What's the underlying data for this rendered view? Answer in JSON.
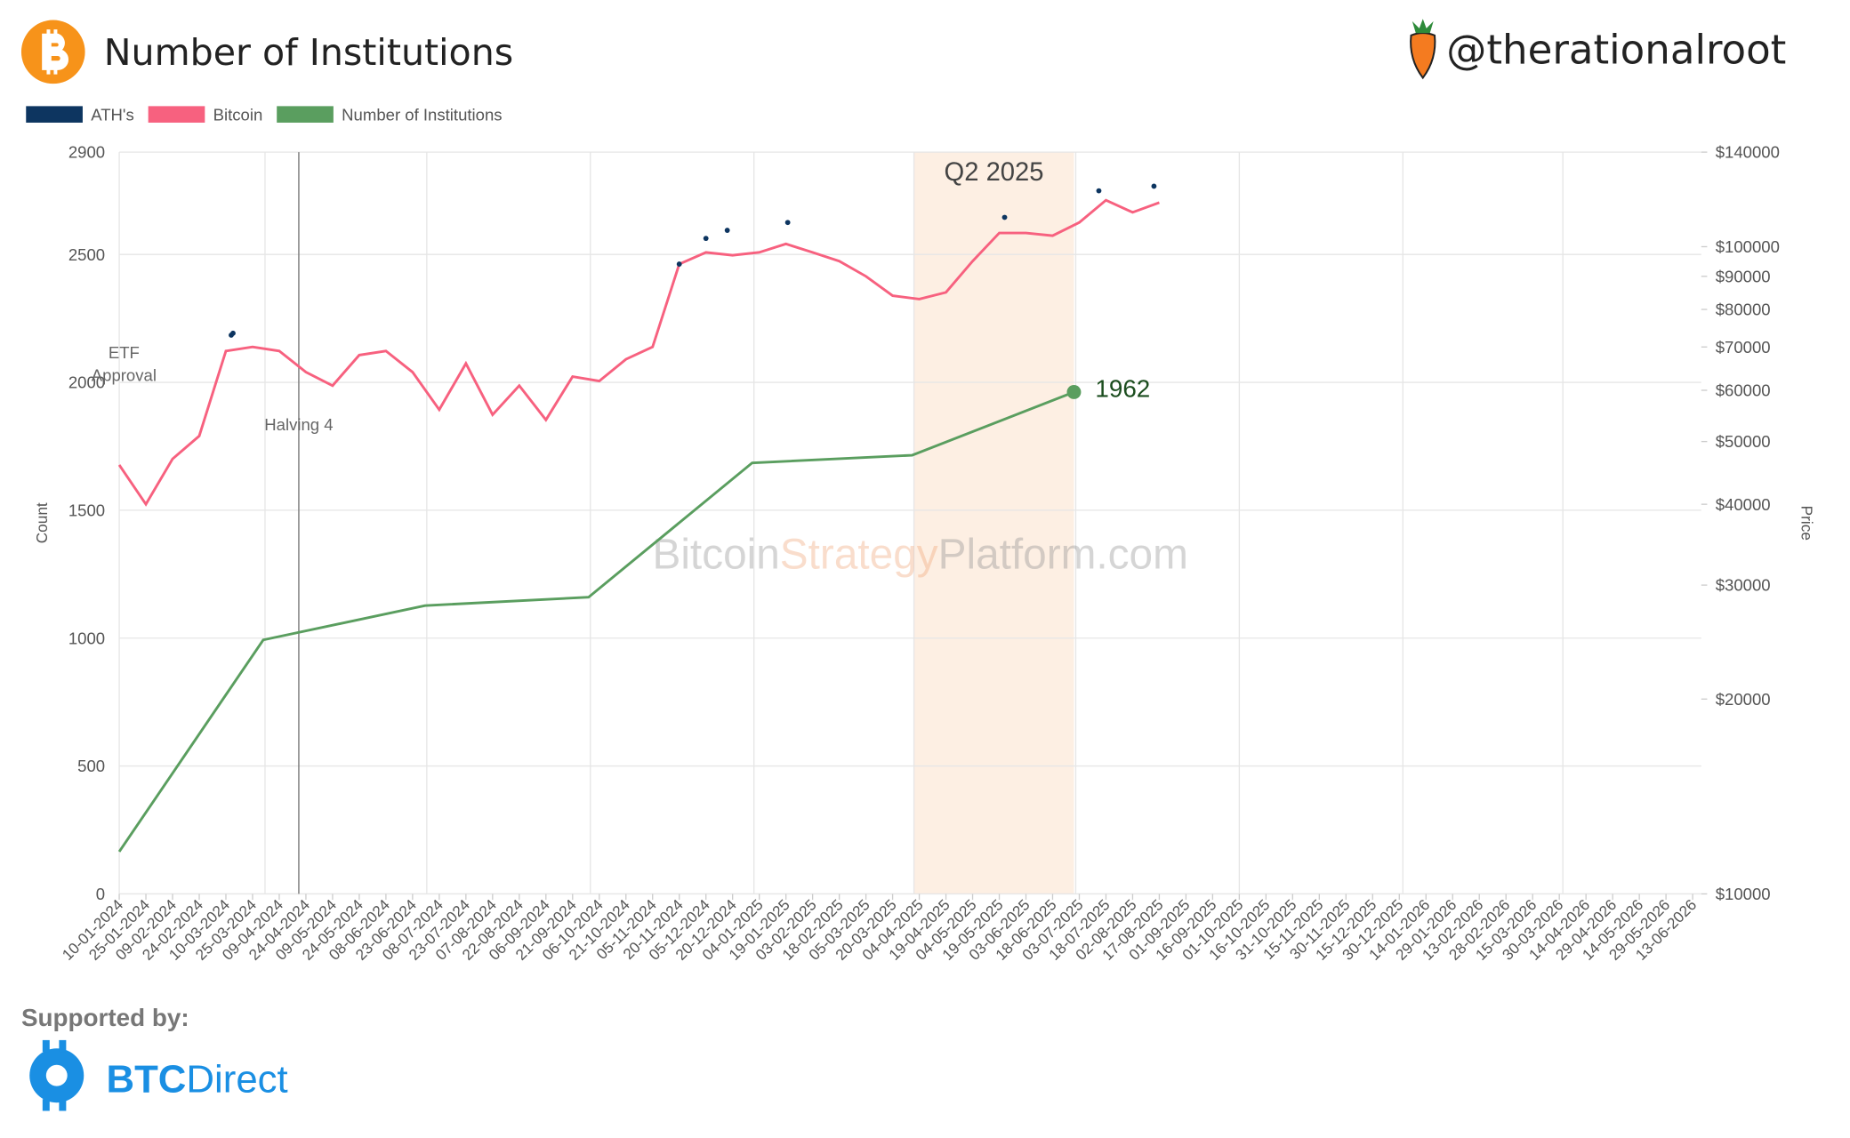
{
  "header": {
    "handle": "@therationalroot"
  },
  "footer": {
    "supported_by": "Supported by:",
    "brand_bold": "BTC",
    "brand": "Direct"
  },
  "chart_data": {
    "type": "line",
    "title": "Number of Institutions",
    "legend": "top-left",
    "grid": true,
    "y_label": "Count",
    "y2_label": "Price",
    "y2log": true,
    "categories": [
      "10-01-2024",
      "25-01-2024",
      "09-02-2024",
      "24-02-2024",
      "10-03-2024",
      "25-03-2024",
      "09-04-2024",
      "24-04-2024",
      "09-05-2024",
      "24-05-2024",
      "08-06-2024",
      "23-06-2024",
      "08-07-2024",
      "23-07-2024",
      "07-08-2024",
      "22-08-2024",
      "06-09-2024",
      "21-09-2024",
      "06-10-2024",
      "21-10-2024",
      "05-11-2024",
      "20-11-2024",
      "05-12-2024",
      "20-12-2024",
      "04-01-2025",
      "19-01-2025",
      "03-02-2025",
      "18-02-2025",
      "05-03-2025",
      "20-03-2025",
      "04-04-2025",
      "19-04-2025",
      "04-05-2025",
      "19-05-2025",
      "03-06-2025",
      "18-06-2025",
      "03-07-2025",
      "18-07-2025",
      "02-08-2025",
      "17-08-2025",
      "01-09-2025",
      "16-09-2025",
      "01-10-2025",
      "16-10-2025",
      "31-10-2025",
      "15-11-2025",
      "30-11-2025",
      "15-12-2025",
      "30-12-2025",
      "14-01-2026",
      "29-01-2026",
      "13-02-2026",
      "28-02-2026",
      "15-03-2026",
      "30-03-2026",
      "14-04-2026",
      "29-04-2026",
      "14-05-2026",
      "29-05-2026",
      "13-06-2026"
    ],
    "ylim": [
      0,
      2900
    ],
    "yticks": [
      0,
      500,
      1000,
      1500,
      2000,
      2500,
      2900
    ],
    "y2lim": [
      10000,
      140000
    ],
    "y2ticks": [
      {
        "value": 10000,
        "label": "$10000"
      },
      {
        "value": 20000,
        "label": "$20000"
      },
      {
        "value": 30000,
        "label": "$30000"
      },
      {
        "value": 40000,
        "label": "$40000"
      },
      {
        "value": 50000,
        "label": "$50000"
      },
      {
        "value": 60000,
        "label": "$60000"
      },
      {
        "value": 70000,
        "label": "$70000"
      },
      {
        "value": 80000,
        "label": "$80000"
      },
      {
        "value": 90000,
        "label": "$90000"
      },
      {
        "value": 100000,
        "label": "$100000"
      },
      {
        "value": 140000,
        "label": "$140000"
      }
    ],
    "series": [
      {
        "name": "ATH's",
        "color": "#0d3560",
        "axis": "y2",
        "x": [
          "13-03-2024",
          "14-03-2024",
          "20-11-2024",
          "05-12-2024",
          "17-12-2024",
          "20-01-2025",
          "22-05-2025",
          "14-07-2025",
          "14-08-2025"
        ],
        "values": [
          73000,
          73500,
          94000,
          103000,
          106000,
          109000,
          111000,
          122000,
          124000
        ]
      },
      {
        "name": "Bitcoin",
        "color": "#f7617f",
        "axis": "y2",
        "values": [
          46000,
          40000,
          47000,
          51000,
          69000,
          70000,
          69000,
          64000,
          61000,
          68000,
          69000,
          64000,
          56000,
          66000,
          55000,
          61000,
          54000,
          63000,
          62000,
          67000,
          70000,
          94000,
          98000,
          97000,
          98000,
          101000,
          98000,
          95000,
          90000,
          84000,
          83000,
          85000,
          95000,
          105000,
          105000,
          104000,
          109000,
          118000,
          113000,
          117000,
          null,
          null,
          null,
          null,
          null,
          null,
          null,
          null,
          null,
          null,
          null,
          null,
          null,
          null,
          null,
          null,
          null,
          null,
          null,
          null
        ]
      },
      {
        "name": "Number of Institutions",
        "color": "#5a9e5f",
        "x": [
          "10-01-2024",
          "31-03-2024",
          "30-06-2024",
          "30-09-2024",
          "31-12-2024",
          "31-03-2025",
          "30-06-2025"
        ],
        "values": [
          165,
          993,
          1127,
          1160,
          1685,
          1715,
          1962
        ]
      }
    ],
    "annotations": [
      {
        "text": [
          "ETF",
          "Approval"
        ],
        "x": "10-01-2024"
      },
      {
        "text": [
          "Halving 4"
        ],
        "x": "20-04-2024"
      }
    ],
    "highlight": {
      "label": "Q2 2025",
      "x": [
        "01-04-2025",
        "30-06-2025"
      ]
    },
    "watermark": [
      "Bitcoin",
      "Strategy",
      "Platform.com"
    ]
  }
}
